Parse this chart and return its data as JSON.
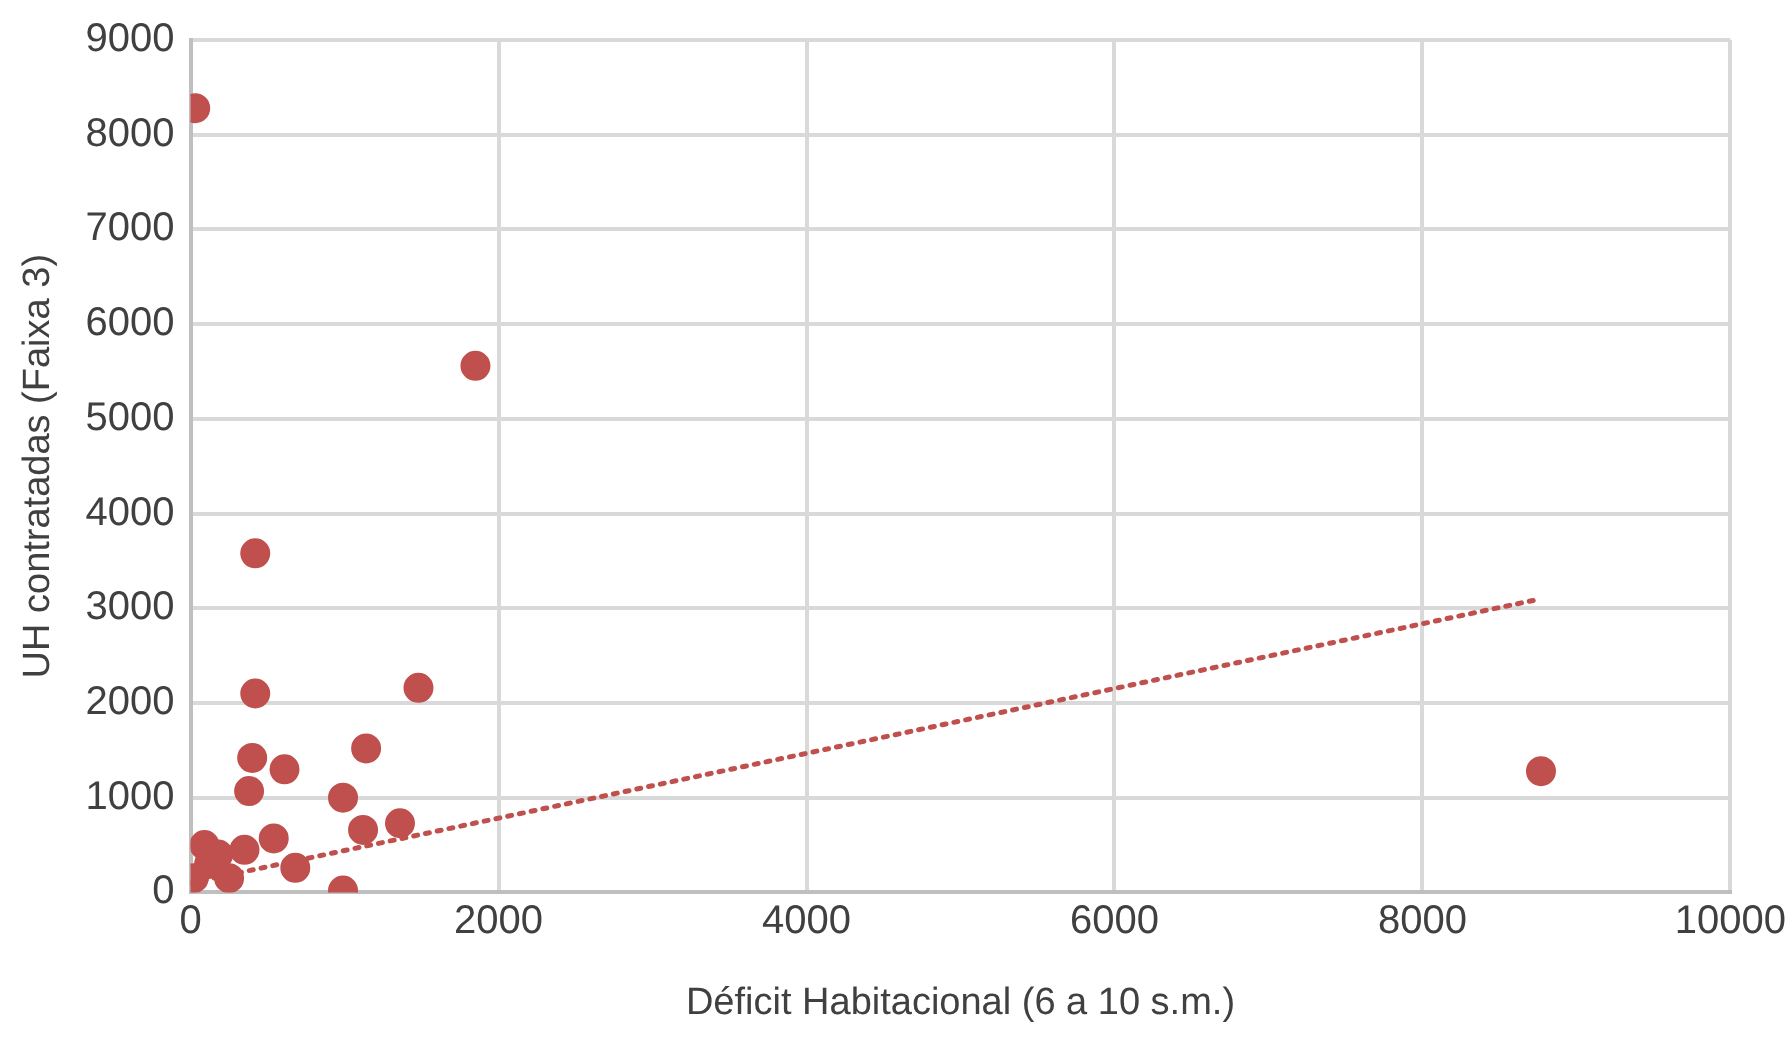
{
  "chart_data": {
    "type": "scatter",
    "xlabel": "Déficit Habitacional (6 a 10 s.m.)",
    "ylabel": "UH contratadas (Faixa 3)",
    "xlim": [
      0,
      10000
    ],
    "xticks": [
      0,
      2000,
      4000,
      6000,
      8000,
      10000
    ],
    "ylim": [
      0,
      9000
    ],
    "yticks": [
      0,
      1000,
      2000,
      3000,
      4000,
      5000,
      6000,
      7000,
      8000,
      9000
    ],
    "grid": true,
    "legend": false,
    "marker": "circle",
    "series": [
      {
        "color": "#c0504d",
        "x": [
          30,
          1850,
          420,
          420,
          1480,
          400,
          610,
          1140,
          380,
          990,
          1120,
          1360,
          990,
          90,
          540,
          350,
          680,
          8770,
          250,
          20,
          120,
          180
        ],
        "values": [
          8280,
          5560,
          3580,
          2100,
          2160,
          1420,
          1300,
          1520,
          1070,
          1000,
          660,
          730,
          20,
          500,
          570,
          450,
          260,
          1280,
          150,
          150,
          300,
          400
        ]
      },
      {
        "type": "line",
        "color": "#c0504d",
        "line_style": "dotted",
        "marker": "none",
        "x": [
          0,
          8770
        ],
        "values": [
          100,
          3100
        ]
      }
    ]
  }
}
